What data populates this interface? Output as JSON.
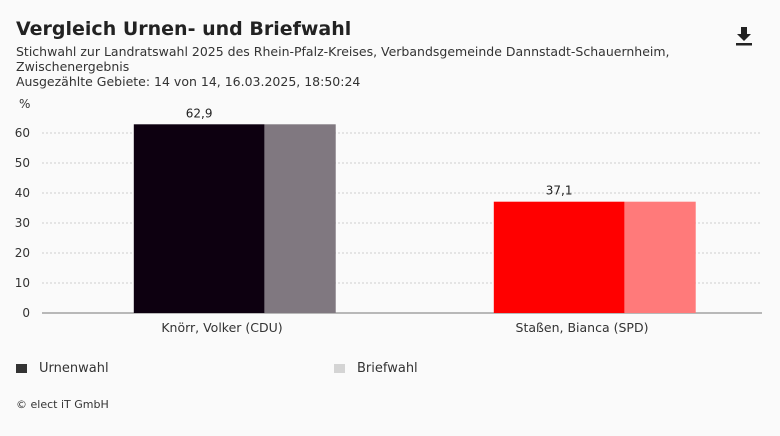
{
  "header": {
    "title": "Vergleich Urnen- und Briefwahl",
    "subtitle": "Stichwahl zur Landratswahl 2025 des Rhein-Pfalz-Kreises, Verbandsgemeinde Dannstadt-Schauernheim, Zwischenergebnis",
    "meta": "Ausgezählte Gebiete: 14 von 14, 16.03.2025, 18:50:24",
    "download_icon": "download-icon"
  },
  "chart_data": {
    "type": "bar",
    "ylabel": "%",
    "ylim": [
      0,
      70
    ],
    "yticks": [
      "0",
      "10",
      "20",
      "30",
      "40",
      "50",
      "60"
    ],
    "grid": true,
    "categories": [
      "Knörr, Volker (CDU)",
      "Staßen, Bianca (SPD)"
    ],
    "series": [
      {
        "name": "Urnenwahl",
        "values": [
          62.9,
          37.1
        ],
        "colors": [
          "#0d0010",
          "#ff0000"
        ],
        "labels": [
          "62,9",
          "37,1"
        ]
      },
      {
        "name": "Briefwahl",
        "values": [
          62.9,
          37.1
        ],
        "colors": [
          "#807880",
          "#ff7a7a"
        ],
        "labels": [
          "",
          ""
        ]
      }
    ],
    "legend_position": "bottom"
  },
  "legend": [
    {
      "label": "Urnenwahl",
      "color": "#333333"
    },
    {
      "label": "Briefwahl",
      "color": "#d4d4d4"
    }
  ],
  "footer": {
    "credit": "© elect iT GmbH"
  }
}
